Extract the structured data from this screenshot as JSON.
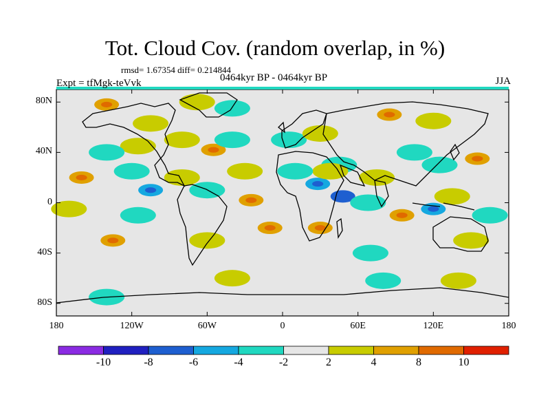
{
  "title": "Tot. Cloud Cov. (random overlap, in %)",
  "stats": "rmsd= 1.67354 diff= 0.214844",
  "experiment": "Expt = tfMgk-teVvk",
  "period": "0464kyr BP - 0464kyr BP",
  "season": "JJA",
  "axes": {
    "y_ticks": [
      {
        "value": 80,
        "label": "80N"
      },
      {
        "value": 40,
        "label": "40N"
      },
      {
        "value": 0,
        "label": "0"
      },
      {
        "value": -40,
        "label": "40S"
      },
      {
        "value": -80,
        "label": "80S"
      }
    ],
    "x_ticks": [
      {
        "value": -180,
        "label": "180"
      },
      {
        "value": -120,
        "label": "120W"
      },
      {
        "value": -60,
        "label": "60W"
      },
      {
        "value": 0,
        "label": "0"
      },
      {
        "value": 60,
        "label": "60E"
      },
      {
        "value": 120,
        "label": "120E"
      },
      {
        "value": 180,
        "label": "180"
      }
    ]
  },
  "colorbar": {
    "colors": [
      "#8a2be2",
      "#2020c0",
      "#1e5fd0",
      "#15a8e0",
      "#20d8c0",
      "#e6e6e6",
      "#c8cc00",
      "#e0a000",
      "#e06a00",
      "#e02000"
    ],
    "labels": [
      "-10",
      "-8",
      "-6",
      "-4",
      "-2",
      "2",
      "4",
      "8",
      "10"
    ]
  },
  "chart_data": {
    "type": "heatmap",
    "title": "Tot. Cloud Cov. (random overlap, in %)",
    "xlim": [
      -180,
      180
    ],
    "ylim": [
      -90,
      90
    ],
    "levels": [
      -10,
      -8,
      -6,
      -4,
      -2,
      2,
      4,
      8,
      10
    ],
    "anomaly_blobs": [
      {
        "lon": -140,
        "lat": 78,
        "level": 4
      },
      {
        "lon": -105,
        "lat": 63,
        "level": 2
      },
      {
        "lon": -68,
        "lat": 80,
        "level": 2
      },
      {
        "lon": -40,
        "lat": 75,
        "level": -2
      },
      {
        "lon": -80,
        "lat": 50,
        "level": 2
      },
      {
        "lon": -115,
        "lat": 45,
        "level": 2
      },
      {
        "lon": -140,
        "lat": 40,
        "level": -2
      },
      {
        "lon": -55,
        "lat": 42,
        "level": 4
      },
      {
        "lon": -40,
        "lat": 50,
        "level": -2
      },
      {
        "lon": -160,
        "lat": 20,
        "level": 4
      },
      {
        "lon": -120,
        "lat": 25,
        "level": -2
      },
      {
        "lon": -80,
        "lat": 20,
        "level": 2
      },
      {
        "lon": -105,
        "lat": 10,
        "level": -4
      },
      {
        "lon": -60,
        "lat": 10,
        "level": -2
      },
      {
        "lon": -25,
        "lat": 2,
        "level": 4
      },
      {
        "lon": -30,
        "lat": 25,
        "level": 2
      },
      {
        "lon": -170,
        "lat": -5,
        "level": 2
      },
      {
        "lon": -115,
        "lat": -10,
        "level": -2
      },
      {
        "lon": -135,
        "lat": -30,
        "level": 4
      },
      {
        "lon": -60,
        "lat": -30,
        "level": 2
      },
      {
        "lon": -10,
        "lat": -20,
        "level": 4
      },
      {
        "lon": 5,
        "lat": 50,
        "level": -2
      },
      {
        "lon": 30,
        "lat": 55,
        "level": 2
      },
      {
        "lon": 45,
        "lat": 30,
        "level": -2
      },
      {
        "lon": 28,
        "lat": 15,
        "level": -4
      },
      {
        "lon": 48,
        "lat": 5,
        "level": -6
      },
      {
        "lon": 38,
        "lat": 25,
        "level": 2
      },
      {
        "lon": 10,
        "lat": 25,
        "level": -2
      },
      {
        "lon": 30,
        "lat": -20,
        "level": 4
      },
      {
        "lon": 68,
        "lat": 0,
        "level": -2
      },
      {
        "lon": 75,
        "lat": 20,
        "level": 2
      },
      {
        "lon": 85,
        "lat": 70,
        "level": 4
      },
      {
        "lon": 120,
        "lat": 65,
        "level": 2
      },
      {
        "lon": 105,
        "lat": 40,
        "level": -2
      },
      {
        "lon": 125,
        "lat": 30,
        "level": -2
      },
      {
        "lon": 155,
        "lat": 35,
        "level": 4
      },
      {
        "lon": 135,
        "lat": 5,
        "level": 2
      },
      {
        "lon": 120,
        "lat": -5,
        "level": -4
      },
      {
        "lon": 165,
        "lat": -10,
        "level": -2
      },
      {
        "lon": 95,
        "lat": -10,
        "level": 4
      },
      {
        "lon": 150,
        "lat": -30,
        "level": 2
      },
      {
        "lon": 70,
        "lat": -40,
        "level": -2
      },
      {
        "lon": -40,
        "lat": -60,
        "level": 2
      },
      {
        "lon": 80,
        "lat": -62,
        "level": -2
      },
      {
        "lon": 140,
        "lat": -62,
        "level": 2
      },
      {
        "lon": -140,
        "lat": -75,
        "level": -2
      }
    ]
  }
}
